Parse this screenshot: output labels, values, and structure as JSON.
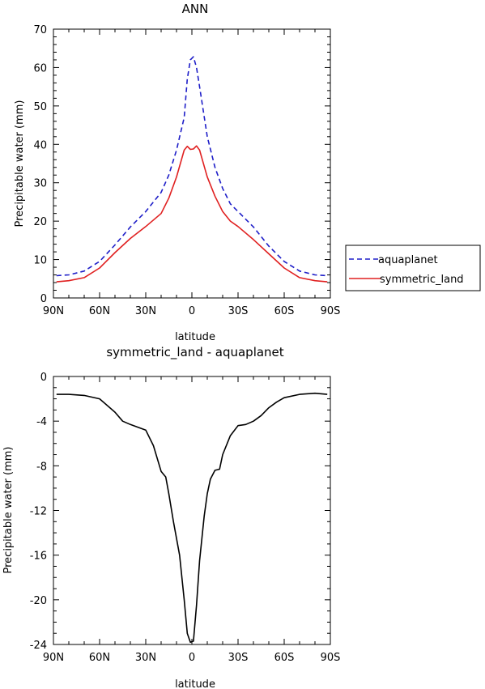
{
  "chart_data": [
    {
      "type": "line",
      "title": "ANN",
      "xlabel": "latitude",
      "ylabel": "Precipitable water (mm)",
      "xlim": [
        -90,
        90
      ],
      "ylim": [
        0,
        70
      ],
      "x_tick_labels": [
        "90N",
        "60N",
        "30N",
        "0",
        "30S",
        "60S",
        "90S"
      ],
      "x_tick_values": [
        -90,
        -60,
        -30,
        0,
        30,
        60,
        90
      ],
      "y_ticks": [
        0,
        10,
        20,
        30,
        40,
        50,
        60,
        70
      ],
      "grid": false,
      "legend_position": "right",
      "series": [
        {
          "name": "aquaplanet",
          "color": "#1e1ec8",
          "style": "dashed",
          "points": [
            [
              -88,
              5.8
            ],
            [
              -80,
              6.0
            ],
            [
              -70,
              7.0
            ],
            [
              -60,
              9.5
            ],
            [
              -50,
              13.8
            ],
            [
              -40,
              18.5
            ],
            [
              -30,
              22.5
            ],
            [
              -20,
              27.5
            ],
            [
              -15,
              32.0
            ],
            [
              -10,
              38.5
            ],
            [
              -5,
              47.0
            ],
            [
              -3,
              57.0
            ],
            [
              -1,
              62.0
            ],
            [
              1,
              62.8
            ],
            [
              3,
              60.0
            ],
            [
              5,
              55.0
            ],
            [
              10,
              42.0
            ],
            [
              15,
              34.0
            ],
            [
              20,
              28.5
            ],
            [
              25,
              24.5
            ],
            [
              30,
              22.5
            ],
            [
              40,
              18.5
            ],
            [
              50,
              13.5
            ],
            [
              60,
              9.5
            ],
            [
              70,
              7.0
            ],
            [
              80,
              6.0
            ],
            [
              88,
              5.8
            ]
          ]
        },
        {
          "name": "symmetric_land",
          "color": "#e02020",
          "style": "solid",
          "points": [
            [
              -88,
              4.2
            ],
            [
              -80,
              4.5
            ],
            [
              -70,
              5.3
            ],
            [
              -60,
              7.8
            ],
            [
              -50,
              11.8
            ],
            [
              -40,
              15.5
            ],
            [
              -30,
              18.6
            ],
            [
              -20,
              22.0
            ],
            [
              -15,
              26.0
            ],
            [
              -10,
              31.5
            ],
            [
              -5,
              38.5
            ],
            [
              -3,
              39.5
            ],
            [
              -1,
              38.7
            ],
            [
              1,
              38.8
            ],
            [
              3,
              39.6
            ],
            [
              5,
              38.5
            ],
            [
              10,
              31.5
            ],
            [
              15,
              26.5
            ],
            [
              20,
              22.5
            ],
            [
              25,
              20.0
            ],
            [
              30,
              18.6
            ],
            [
              40,
              15.2
            ],
            [
              50,
              11.5
            ],
            [
              60,
              7.8
            ],
            [
              70,
              5.3
            ],
            [
              80,
              4.5
            ],
            [
              88,
              4.2
            ]
          ]
        }
      ]
    },
    {
      "type": "line",
      "title": "symmetric_land - aquaplanet",
      "xlabel": "latitude",
      "ylabel": "Precipitable water (mm)",
      "xlim": [
        -90,
        90
      ],
      "ylim": [
        -24,
        0
      ],
      "x_tick_labels": [
        "90N",
        "60N",
        "30N",
        "0",
        "30S",
        "60S",
        "90S"
      ],
      "x_tick_values": [
        -90,
        -60,
        -30,
        0,
        30,
        60,
        90
      ],
      "y_ticks": [
        0,
        -4,
        -8,
        -12,
        -16,
        -20,
        -24
      ],
      "grid": false,
      "series": [
        {
          "color": "#000000",
          "style": "solid",
          "points": [
            [
              -88,
              -1.6
            ],
            [
              -80,
              -1.6
            ],
            [
              -70,
              -1.7
            ],
            [
              -60,
              -2.0
            ],
            [
              -50,
              -3.2
            ],
            [
              -45,
              -4.0
            ],
            [
              -40,
              -4.3
            ],
            [
              -30,
              -4.8
            ],
            [
              -25,
              -6.2
            ],
            [
              -20,
              -8.5
            ],
            [
              -17,
              -9.0
            ],
            [
              -15,
              -10.5
            ],
            [
              -12,
              -13.0
            ],
            [
              -8,
              -16.0
            ],
            [
              -5,
              -20.0
            ],
            [
              -3,
              -23.0
            ],
            [
              -1,
              -23.8
            ],
            [
              1,
              -23.7
            ],
            [
              3,
              -20.5
            ],
            [
              5,
              -16.5
            ],
            [
              8,
              -12.5
            ],
            [
              10,
              -10.5
            ],
            [
              12,
              -9.2
            ],
            [
              15,
              -8.4
            ],
            [
              18,
              -8.3
            ],
            [
              20,
              -7.0
            ],
            [
              25,
              -5.3
            ],
            [
              30,
              -4.4
            ],
            [
              35,
              -4.3
            ],
            [
              40,
              -4.0
            ],
            [
              45,
              -3.5
            ],
            [
              50,
              -2.8
            ],
            [
              55,
              -2.3
            ],
            [
              60,
              -1.9
            ],
            [
              70,
              -1.6
            ],
            [
              80,
              -1.5
            ],
            [
              88,
              -1.6
            ]
          ]
        }
      ]
    }
  ]
}
